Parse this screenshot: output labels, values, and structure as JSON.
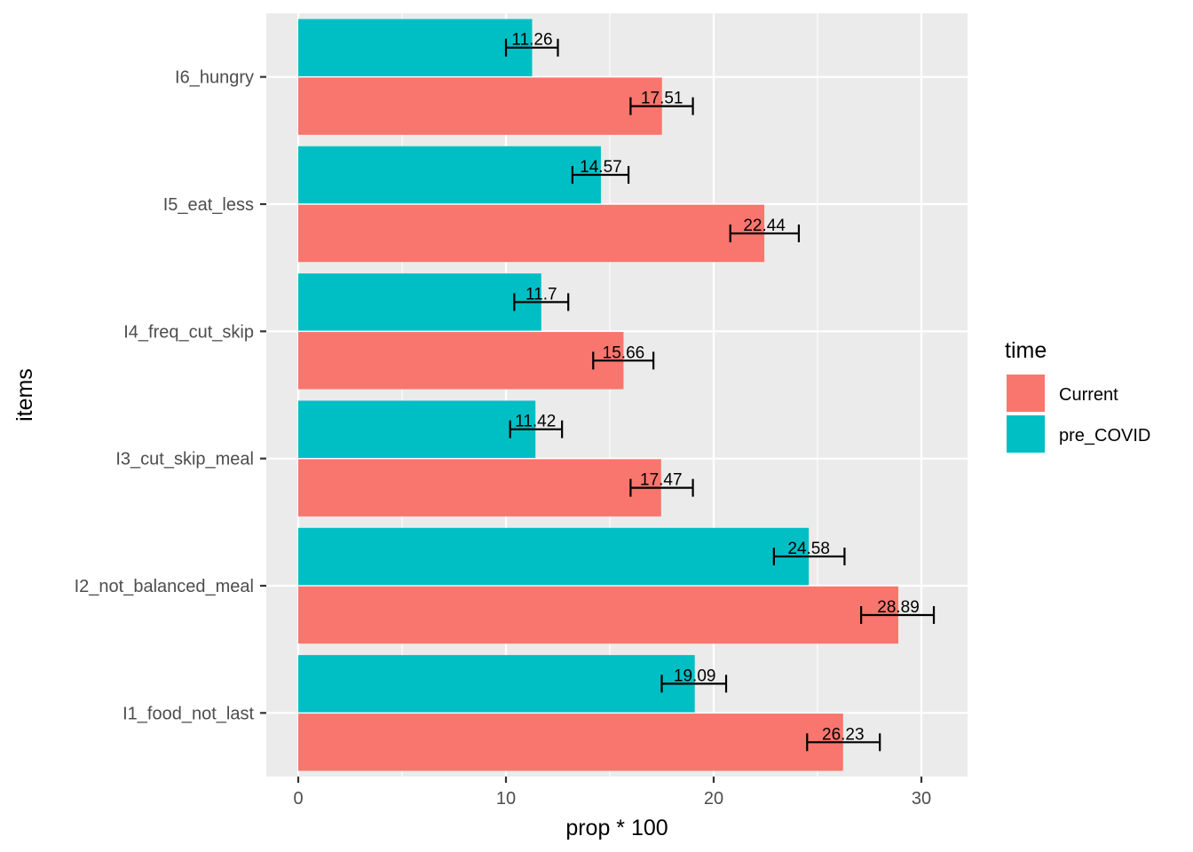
{
  "chart_data": {
    "type": "bar",
    "orientation": "horizontal",
    "xlabel": "prop * 100",
    "ylabel": "items",
    "xlim": [
      -1.5,
      32.0
    ],
    "x_ticks": [
      0,
      10,
      20,
      30
    ],
    "x_minor_ticks": [
      5,
      15,
      25
    ],
    "grid": true,
    "categories": [
      "I1_food_not_last",
      "I2_not_balanced_meal",
      "I3_cut_skip_meal",
      "I4_freq_cut_skip",
      "I5_eat_less",
      "I6_hungry"
    ],
    "series": [
      {
        "name": "Current",
        "color": "#F8766D",
        "values": [
          26.23,
          28.89,
          17.47,
          15.66,
          22.44,
          17.51
        ],
        "labels": [
          "26.23",
          "28.89",
          "17.47",
          "15.66",
          "22.44",
          "17.51"
        ],
        "error_low": [
          24.5,
          27.1,
          16.0,
          14.2,
          20.8,
          16.0
        ],
        "error_high": [
          28.0,
          30.6,
          19.0,
          17.1,
          24.1,
          19.0
        ]
      },
      {
        "name": "pre_COVID",
        "color": "#00BFC4",
        "values": [
          19.09,
          24.58,
          11.42,
          11.7,
          14.57,
          11.26
        ],
        "labels": [
          "19.09",
          "24.58",
          "11.42",
          "11.7",
          "14.57",
          "11.26"
        ],
        "error_low": [
          17.5,
          22.9,
          10.2,
          10.4,
          13.2,
          10.0
        ],
        "error_high": [
          20.6,
          26.3,
          12.7,
          13.0,
          15.9,
          12.5
        ]
      }
    ],
    "legend": {
      "title": "time",
      "position": "right"
    }
  }
}
